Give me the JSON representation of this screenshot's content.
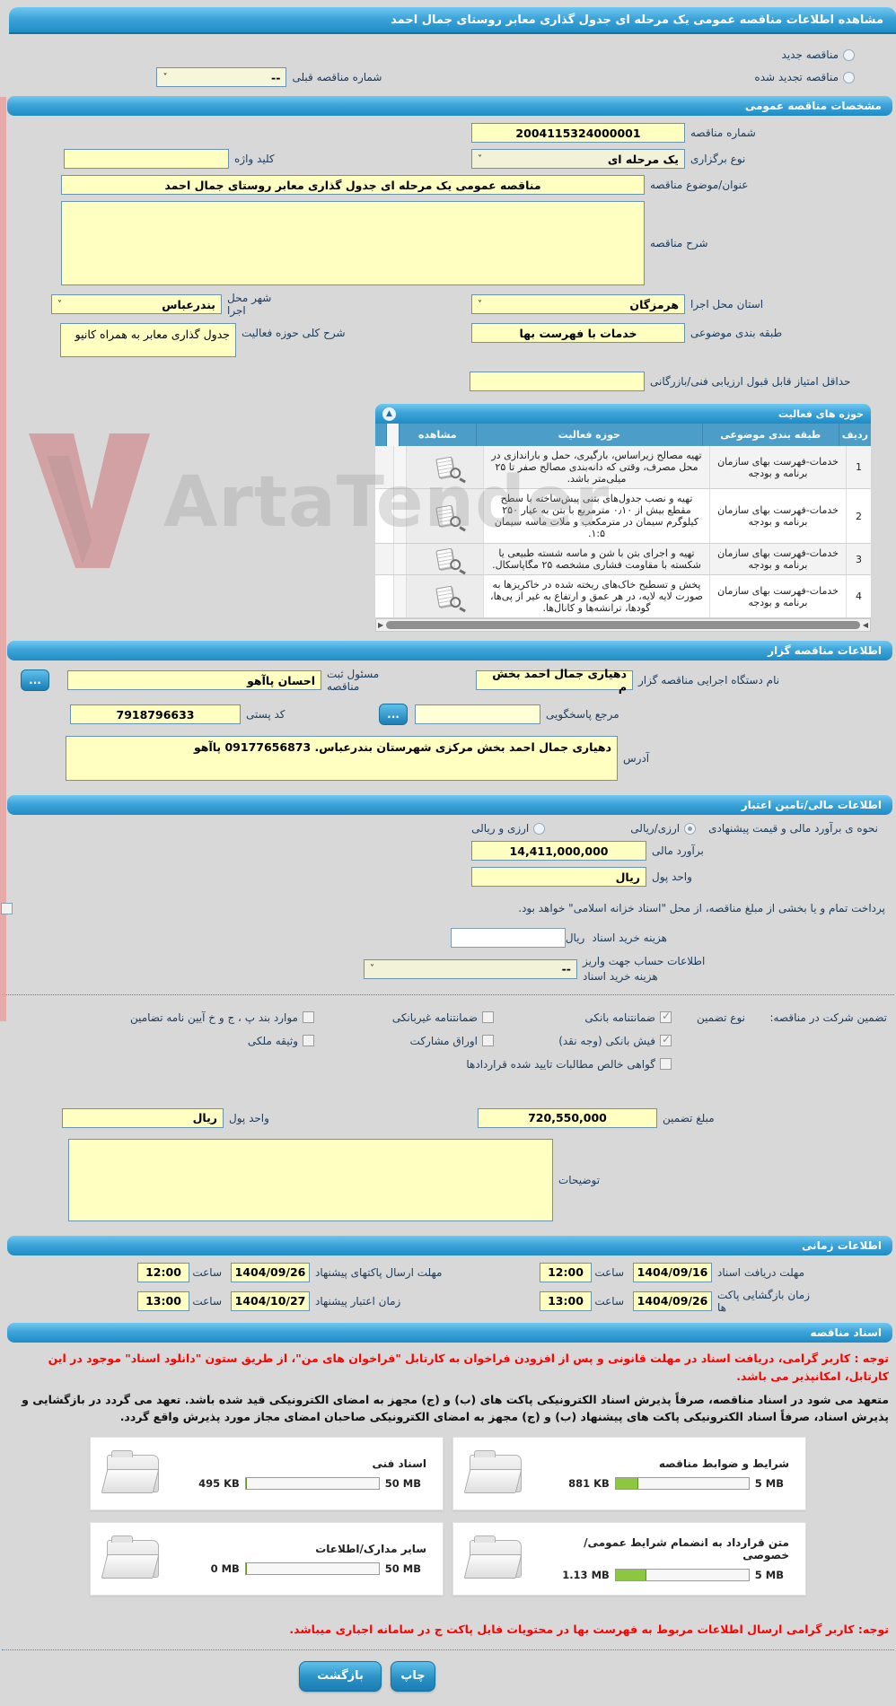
{
  "title": "مشاهده اطلاعات مناقصه عمومی یک مرحله ای جدول گذاری معابر روستای جمال احمد",
  "renewal": {
    "new_label": "مناقصه جدید",
    "renewed_label": "مناقصه تجدید شده",
    "prev_number_label": "شماره مناقصه قبلی",
    "prev_number_value": "--"
  },
  "sections": {
    "general": {
      "header": "مشخصات مناقصه عمومی",
      "fields": {
        "tender_number": {
          "label": "شماره مناقصه",
          "value": "2004115324000001"
        },
        "process_type": {
          "label": "نوع برگزاری",
          "value": "یک مرحله ای"
        },
        "keyword": {
          "label": "کلید واژه",
          "value": ""
        },
        "subject": {
          "label": "عنوان/موضوع مناقصه",
          "value": "مناقصه عمومی یک مرحله ای جدول گذاری معابر روستای جمال احمد"
        },
        "description": {
          "label": "شرح مناقصه",
          "value": ""
        },
        "province": {
          "label": "استان محل اجرا",
          "value": "هرمزگان"
        },
        "city": {
          "label": "شهر محل اجرا",
          "value": "بندرعباس"
        },
        "classification": {
          "label": "طبقه بندی موضوعی",
          "value": "خدمات با فهرست بها"
        },
        "activity_summary": {
          "label": "شرح کلی حوزه فعالیت",
          "value": "جدول گذاری معابر به همراه کانیو"
        },
        "min_score": {
          "label": "حداقل امتیاز قابل قبول ارزیابی فنی/بازرگانی",
          "value": ""
        }
      }
    },
    "activities": {
      "header": "حوزه های فعالیت",
      "columns": {
        "row": "ردیف",
        "classification": "طبقه بندی موضوعی",
        "activity": "حوزه فعالیت",
        "view": "مشاهده"
      },
      "rows": [
        {
          "row": "1",
          "classification": "خدمات-فهرست بهای سازمان برنامه و بودجه",
          "activity": "تهیه مصالح زیراساس، بارگیری، حمل و باراندازی در محل مصرف، وقتی که دانه‌بندی مصالح صفر تا ۲۵ میلی‌متر باشد."
        },
        {
          "row": "2",
          "classification": "خدمات-فهرست بهای سازمان برنامه و بودجه",
          "activity": "تهیه و نصب جدول‌های بتنی پیش‌ساخته با سطح مقطع بیش از ۰٫۱۰ مترمربع با بتن به عیار ۲۵۰ کیلوگرم سیمان در مترمکعب و ملات ماسه سیمان ۱:۵."
        },
        {
          "row": "3",
          "classification": "خدمات-فهرست بهای سازمان برنامه و بودجه",
          "activity": "تهیه و اجرای بتن با شن و ماسه شسته طبیعی یا شکسته با مقاومت فشاری مشخصه ۲۵ مگاپاسکال."
        },
        {
          "row": "4",
          "classification": "خدمات-فهرست بهای سازمان برنامه و بودجه",
          "activity": "پخش و تسطیح خاک‌های ریخته شده در خاکریزها به صورت لایه لایه، در هر عمق و ارتفاع به غیر از پی‌ها، گودها، ترانشه‌ها و کانال‌ها."
        }
      ]
    },
    "agency": {
      "header": "اطلاعات مناقصه گزار",
      "name": {
        "label": "نام دستگاه اجرایی مناقصه گزار",
        "value": "دهیاری جمال احمد بخش م"
      },
      "registrar": {
        "label": "مسئول ثبت مناقصه",
        "value": "احسان پاآهو"
      },
      "contact": {
        "label": "مرجع پاسخگویی",
        "value": ""
      },
      "postal": {
        "label": "کد پستی",
        "value": "7918796633"
      },
      "address": {
        "label": "آدرس",
        "value": "دهیاری جمال احمد بخش مرکزی شهرستان بندرعباس. 09177656873 پاآهو"
      },
      "more_button": "..."
    },
    "financial": {
      "header": "اطلاعات مالی/تامین اعتبار",
      "method_label": "نحوه ی برآورد مالی و قیمت پیشنهادی",
      "method_option1": "ارزی/ریالی",
      "method_option2": "ارزی و ریالی",
      "estimate": {
        "label": "برآورد مالی",
        "value": "14,411,000,000"
      },
      "currency": {
        "label": "واحد پول",
        "value": "ریال"
      },
      "treasury_note": "پرداخت تمام و یا بخشی از مبلغ مناقصه، از محل \"اسناد خزانه اسلامی\" خواهد بود.",
      "doc_fee": {
        "label": "هزینه خرید اسناد",
        "suffix": "ریال",
        "value": ""
      },
      "account": {
        "label": "اطلاعات حساب جهت واریز هزینه خرید اسناد",
        "value": "--"
      }
    },
    "guarantee": {
      "section_label": "تضمین شرکت در مناقصه:",
      "type_label": "نوع تضمین",
      "opt_bank": "ضمانتنامه بانکی",
      "opt_nonbank": "ضمانتنامه غیربانکی",
      "opt_bylaw": "موارد بند پ ، ج و خ آیین نامه تضامین",
      "opt_cash": "فیش بانکی (وجه نقد)",
      "opt_bonds": "اوراق مشارکت",
      "opt_property": "وثیقه ملکی",
      "opt_claims": "گواهی خالص مطالبات تایید شده قراردادها",
      "amount": {
        "label": "مبلغ تضمین",
        "value": "720,550,000"
      },
      "currency": {
        "label": "واحد پول",
        "value": "ریال"
      },
      "notes": {
        "label": "توضیحات",
        "value": ""
      }
    },
    "schedule": {
      "header": "اطلاعات زمانی",
      "time_label": "ساعت",
      "doc_receipt": {
        "label": "مهلت دریافت اسناد",
        "date": "1404/09/16",
        "time": "12:00"
      },
      "submit": {
        "label": "مهلت ارسال پاکتهای پیشنهاد",
        "date": "1404/09/26",
        "time": "12:00"
      },
      "opening": {
        "label": "زمان بازگشایی پاکت ها",
        "date": "1404/09/26",
        "time": "13:00"
      },
      "validity": {
        "label": "زمان اعتبار پیشنهاد",
        "date": "1404/10/27",
        "time": "13:00"
      }
    },
    "documents": {
      "header": "اسناد مناقصه",
      "notice_red": "توجه : کاربر گرامی، دریافت اسناد در مهلت قانونی و پس از افزودن فراخوان به کارتابل \"فراخوان های من\"، از طریق ستون \"دانلود اسناد\" موجود در این کارتابل، امکانپذیر می باشد.",
      "notice_black": "متعهد می شود در اسناد مناقصه، صرفاً پذیرش اسناد الکترونیکی پاکت های (ب) و (ج) مجهز به امضای الکترونیکی قید شده باشد. تعهد می گردد در بازگشایی و پذیرش اسناد، صرفاً اسناد الکترونیکی پاکت های پیشنهاد (ب) و (ج) مجهز به امضای الکترونیکی صاحبان امضای مجاز مورد پذیرش واقع گردد.",
      "cards": [
        {
          "title": "شرایط و ضوابط مناقصه",
          "current": "881 KB",
          "max": "5 MB",
          "pct": 17
        },
        {
          "title": "اسناد فنی",
          "current": "495 KB",
          "max": "50 MB",
          "pct": 1
        },
        {
          "title": "متن قرارداد به انضمام شرایط عمومی/خصوصی",
          "current": "1.13 MB",
          "max": "5 MB",
          "pct": 23
        },
        {
          "title": "سایر مدارک/اطلاعات",
          "current": "0 MB",
          "max": "50 MB",
          "pct": 0
        }
      ],
      "footer_red": "توجه: کاربر گرامی ارسال اطلاعات مربوط به فهرست بها در محتویات فایل پاکت ج در سامانه اجباری میباشد."
    }
  },
  "buttons": {
    "back": "بازگشت",
    "print": "چاپ"
  },
  "watermark": {
    "text": "ArtaTender"
  }
}
